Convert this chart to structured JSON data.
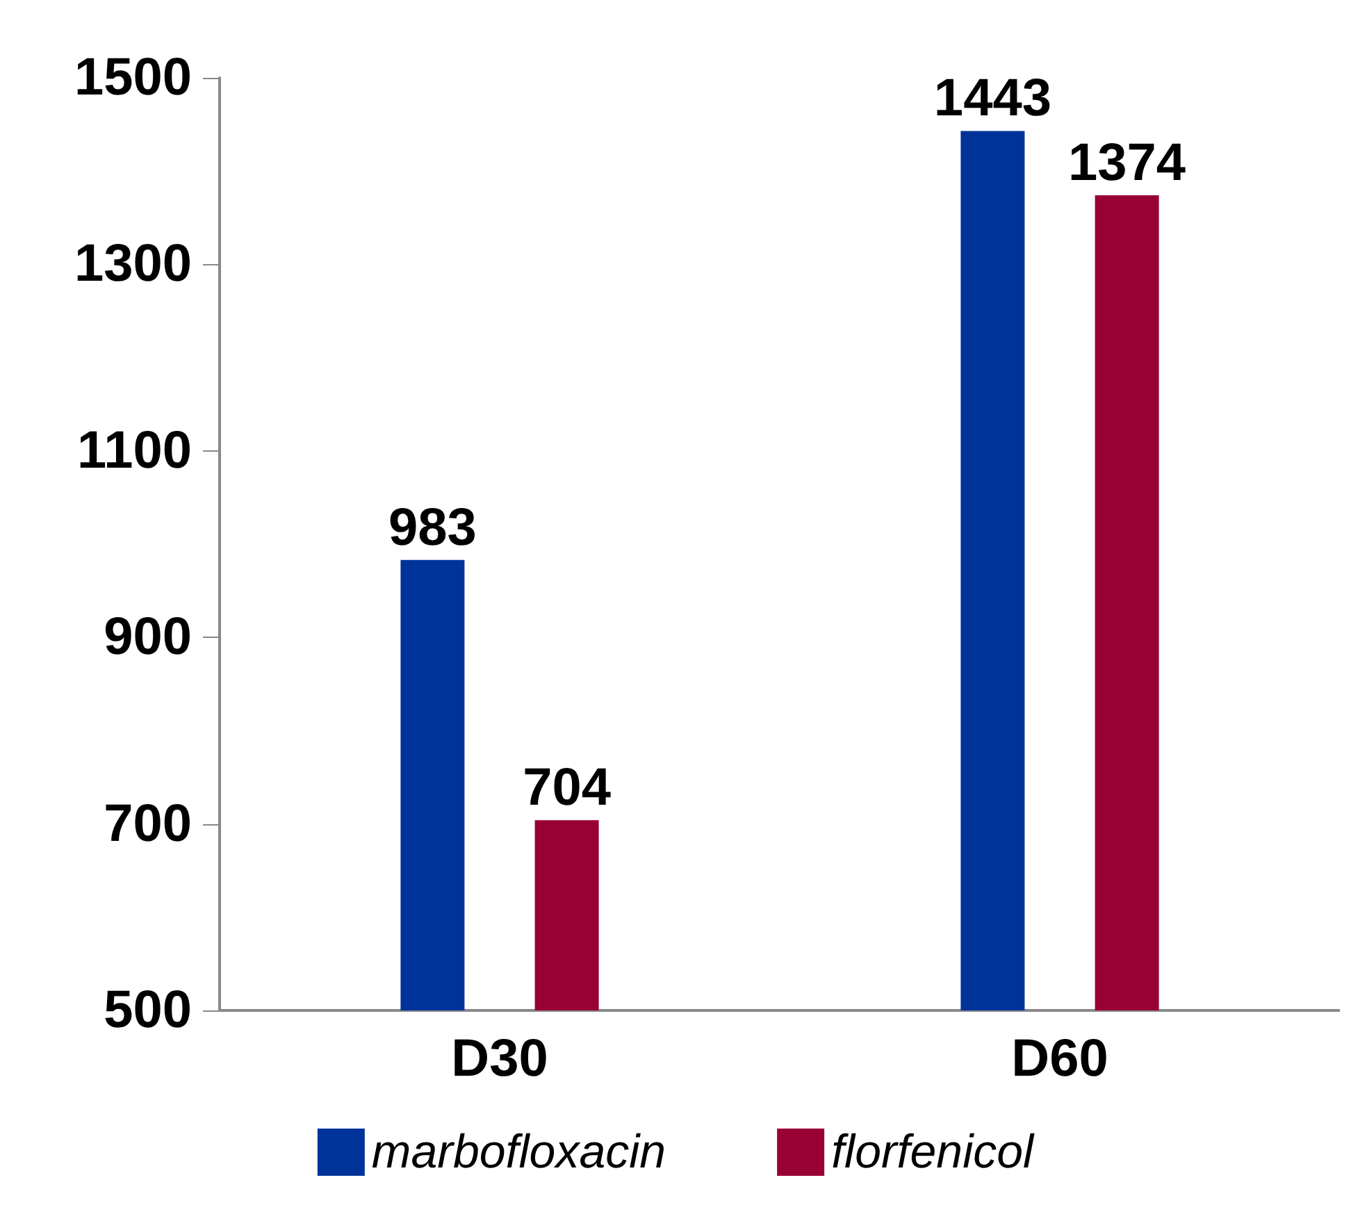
{
  "chart_data": {
    "type": "bar",
    "categories": [
      "D30",
      "D60"
    ],
    "series": [
      {
        "name": "marbofloxacin",
        "color": "#003399",
        "values": [
          983,
          1443
        ]
      },
      {
        "name": "florfenicol",
        "color": "#990033",
        "values": [
          704,
          1374
        ]
      }
    ],
    "ylim": [
      500,
      1500
    ],
    "yticks": [
      500,
      700,
      900,
      1100,
      1300,
      1500
    ],
    "grid": false,
    "legend": "bottom",
    "data_labels": true
  }
}
